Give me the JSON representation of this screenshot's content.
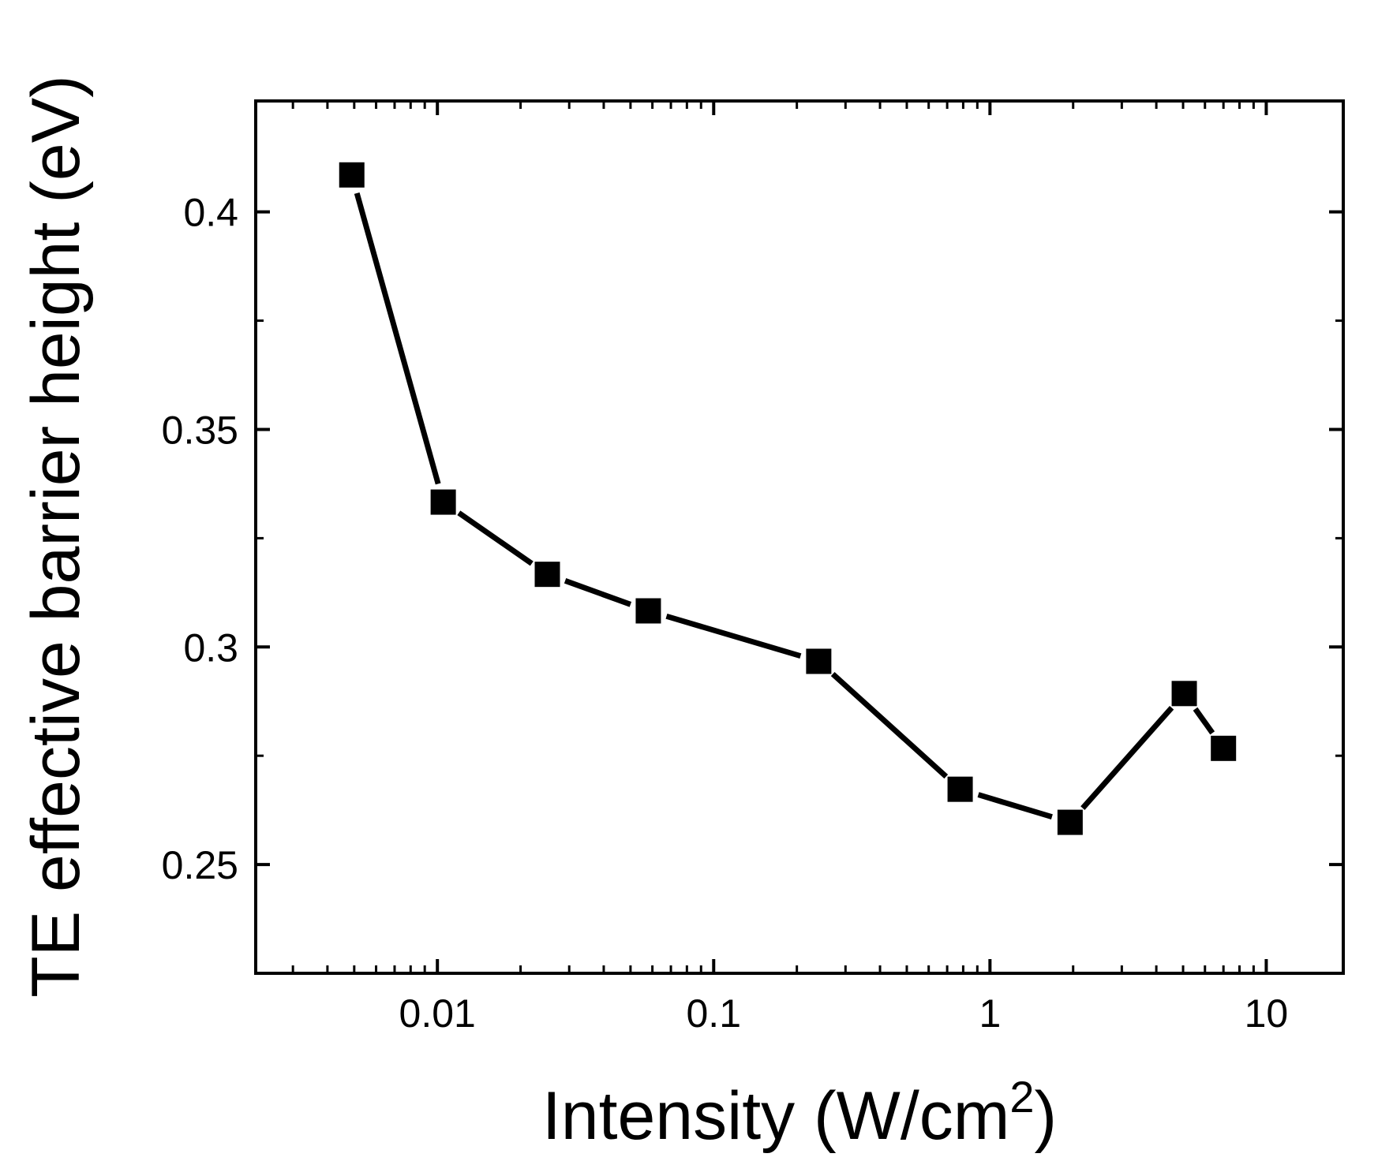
{
  "chart_data": {
    "type": "line",
    "title": "",
    "xlabel": "Intensity (W/cm",
    "xlabel_sup": "2",
    "xlabel_close": ")",
    "ylabel": "TE effective barrier height (eV)",
    "xscale": "log",
    "xlim": [
      0.0022,
      19
    ],
    "ylim": [
      0.225,
      0.4255
    ],
    "xticks": [
      {
        "value": 0.01,
        "label": "0.01"
      },
      {
        "value": 0.1,
        "label": "0.1"
      },
      {
        "value": 1,
        "label": "1"
      },
      {
        "value": 10,
        "label": "10"
      }
    ],
    "yticks": [
      {
        "value": 0.25,
        "label": "0.25"
      },
      {
        "value": 0.3,
        "label": "0.3"
      },
      {
        "value": 0.35,
        "label": "0.35"
      },
      {
        "value": 0.4,
        "label": "0.4"
      }
    ],
    "yminor": [
      0.275,
      0.325,
      0.375
    ],
    "series": [
      {
        "name": "TE effective barrier height",
        "color": "#000000",
        "marker": "square",
        "x": [
          0.0049,
          0.0105,
          0.025,
          0.058,
          0.24,
          0.78,
          1.95,
          5.05,
          7.0
        ],
        "y": [
          0.4085,
          0.3333,
          0.3167,
          0.3083,
          0.2967,
          0.2673,
          0.2597,
          0.2893,
          0.2767
        ]
      }
    ],
    "grid": false,
    "legend": "none"
  }
}
